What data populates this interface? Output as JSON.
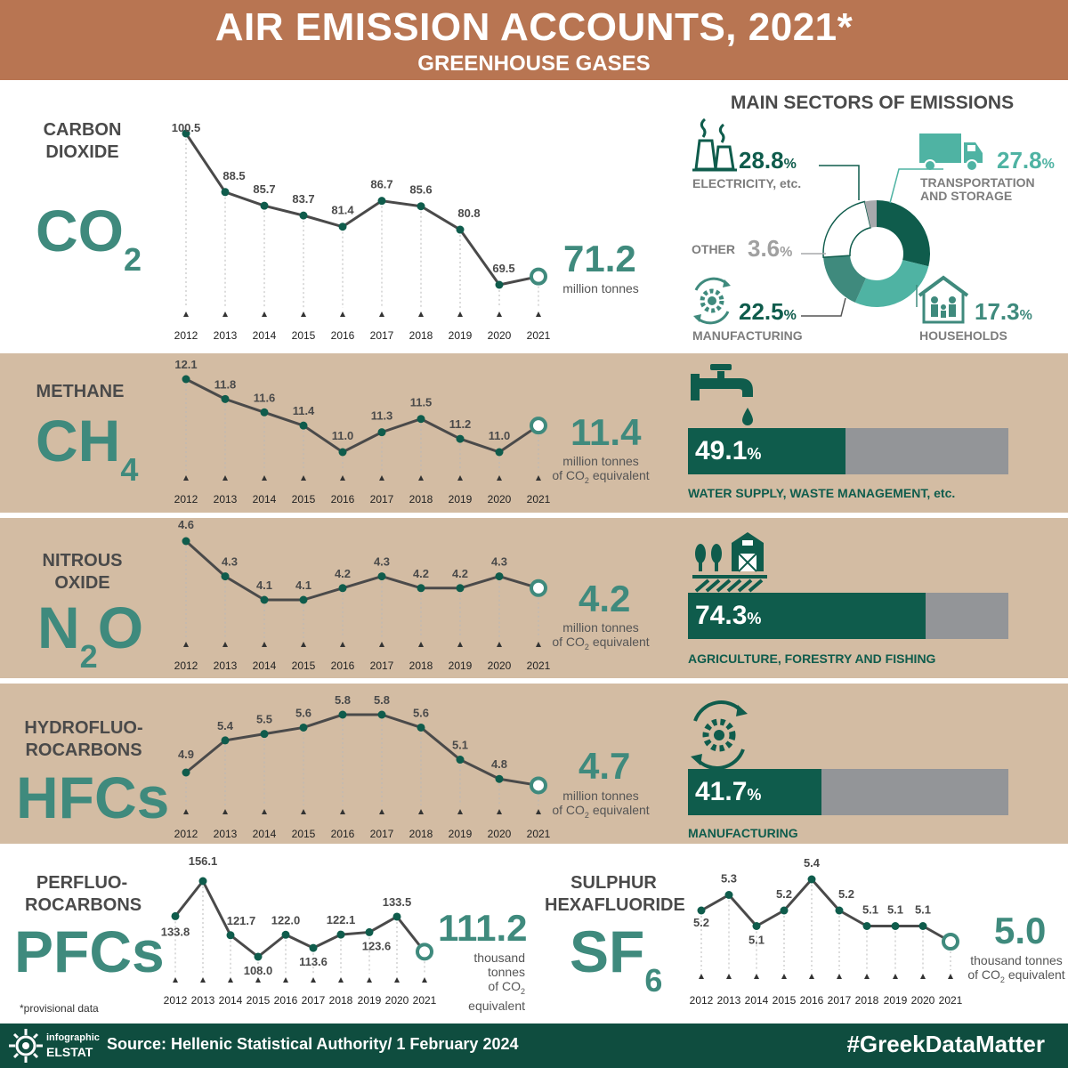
{
  "header": {
    "title": "AIR EMISSION ACCOUNTS, 2021*",
    "subtitle": "GREENHOUSE GASES"
  },
  "colors": {
    "header_bg": "#b87552",
    "band_bg": "#d3bca3",
    "teal": "#3f8a7d",
    "dark_green": "#0f5c4c",
    "light_teal": "#4fb3a3",
    "line": "#4a4a4a",
    "gray_bar": "#939598",
    "footer_bg": "#0f4d3f"
  },
  "gases": {
    "co2": {
      "name": "CARBON DIOXIDE",
      "formula": "CO",
      "formula_sub": "2",
      "latest": "71.2",
      "unit": "million tonnes"
    },
    "ch4": {
      "name": "METHANE",
      "formula": "CH",
      "formula_sub": "4",
      "latest": "11.4",
      "unit": "million tonnes",
      "unit2_pre": "of CO",
      "unit2_sub": "2",
      "unit2_post": " equivalent",
      "sector_pct": "49.1",
      "pct_sign": "%",
      "sector_name": "WATER SUPPLY, WASTE MANAGEMENT, etc.",
      "sector_share": 49.1,
      "icon": "water-tap-icon"
    },
    "n2o": {
      "name_line1": "NITROUS",
      "name_line2": "OXIDE",
      "formula_a": "N",
      "formula_sub": "2",
      "formula_b": "O",
      "latest": "4.2",
      "unit": "million tonnes",
      "unit2_pre": "of CO",
      "unit2_sub": "2",
      "unit2_post": " equivalent",
      "sector_pct": "74.3",
      "pct_sign": "%",
      "sector_name": "AGRICULTURE, FORESTRY AND FISHING",
      "sector_share": 74.3,
      "icon": "farm-barn-icon"
    },
    "hfc": {
      "name_line1": "HYDROFLUO-",
      "name_line2": "ROCARBONS",
      "formula": "HFCs",
      "latest": "4.7",
      "unit": "million tonnes",
      "unit2_pre": "of CO",
      "unit2_sub": "2",
      "unit2_post": " equivalent",
      "sector_pct": "41.7",
      "pct_sign": "%",
      "sector_name": "MANUFACTURING",
      "sector_share": 41.7,
      "icon": "gear-cycle-icon"
    },
    "pfc": {
      "name_line1": "PERFLUO-",
      "name_line2": "ROCARBONS",
      "formula": "PFCs",
      "latest": "111.2",
      "unit_l1": "thousand",
      "unit_l2": "tonnes",
      "unit_l3_pre": "of CO",
      "unit_l3_sub": "2",
      "unit_l4": "equivalent"
    },
    "sf6": {
      "name_line1": "SULPHUR",
      "name_line2": "HEXAFLUORIDE",
      "formula": "SF",
      "formula_sub": "6",
      "latest": "5.0",
      "unit": "thousand tonnes",
      "unit2_pre": "of CO",
      "unit2_sub": "2",
      "unit2_post": " equivalent"
    }
  },
  "main_sectors": {
    "title": "MAIN SECTORS OF EMISSIONS",
    "pct_sign": "%",
    "electricity": {
      "value": "28.8",
      "label": "ELECTRICITY, etc.",
      "icon": "power-plant-icon"
    },
    "transport": {
      "value": "27.8",
      "label_l1": "TRANSPORTATION",
      "label_l2": "AND STORAGE",
      "icon": "truck-icon"
    },
    "other": {
      "value": "3.6",
      "label": "OTHER"
    },
    "manufacturing": {
      "value": "22.5",
      "label": "MANUFACTURING",
      "icon": "gear-cycle-icon"
    },
    "households": {
      "value": "17.3",
      "label": "HOUSEHOLDS",
      "icon": "house-family-icon"
    }
  },
  "footnote": "*provisional data",
  "footer": {
    "source": "Source: Hellenic Statistical Authority/ 1 February 2024",
    "hashtag": "#GreekDataMatter",
    "logo_l1": "infographic",
    "logo_l2": "ELSTAT"
  },
  "chart_data": [
    {
      "type": "line",
      "id": "co2",
      "x": [
        "2012",
        "2013",
        "2014",
        "2015",
        "2016",
        "2017",
        "2018",
        "2019",
        "2020",
        "2021"
      ],
      "values": [
        100.5,
        88.5,
        85.7,
        83.7,
        81.4,
        86.7,
        85.6,
        80.8,
        69.5,
        71.2
      ],
      "labels": [
        "100.5",
        "88.5",
        "85.7",
        "83.7",
        "81.4",
        "86.7",
        "85.6",
        "80.8",
        "69.5"
      ]
    },
    {
      "type": "line",
      "id": "ch4",
      "x": [
        "2012",
        "2013",
        "2014",
        "2015",
        "2016",
        "2017",
        "2018",
        "2019",
        "2020",
        "2021"
      ],
      "values": [
        12.1,
        11.8,
        11.6,
        11.4,
        11.0,
        11.3,
        11.5,
        11.2,
        11.0,
        11.4
      ],
      "labels": [
        "12.1",
        "11.8",
        "11.6",
        "11.4",
        "11.0",
        "11.3",
        "11.5",
        "11.2",
        "11.0"
      ]
    },
    {
      "type": "line",
      "id": "n2o",
      "x": [
        "2012",
        "2013",
        "2014",
        "2015",
        "2016",
        "2017",
        "2018",
        "2019",
        "2020",
        "2021"
      ],
      "values": [
        4.6,
        4.3,
        4.1,
        4.1,
        4.2,
        4.3,
        4.2,
        4.2,
        4.3,
        4.2
      ],
      "labels": [
        "4.6",
        "4.3",
        "4.1",
        "4.1",
        "4.2",
        "4.3",
        "4.2",
        "4.2",
        "4.3"
      ]
    },
    {
      "type": "line",
      "id": "hfc",
      "x": [
        "2012",
        "2013",
        "2014",
        "2015",
        "2016",
        "2017",
        "2018",
        "2019",
        "2020",
        "2021"
      ],
      "values": [
        4.9,
        5.4,
        5.5,
        5.6,
        5.8,
        5.8,
        5.6,
        5.1,
        4.8,
        4.7
      ],
      "labels": [
        "4.9",
        "5.4",
        "5.5",
        "5.6",
        "5.8",
        "5.8",
        "5.6",
        "5.1",
        "4.8"
      ]
    },
    {
      "type": "line",
      "id": "pfc",
      "x": [
        "2012",
        "2013",
        "2014",
        "2015",
        "2016",
        "2017",
        "2018",
        "2019",
        "2020",
        "2021"
      ],
      "values": [
        133.8,
        156.1,
        121.7,
        108.0,
        122.0,
        113.6,
        122.1,
        123.6,
        133.5,
        111.2
      ],
      "labels": [
        "133.8",
        "156.1",
        "121.7",
        "108.0",
        "122.0",
        "113.6",
        "122.1",
        "123.6",
        "133.5"
      ]
    },
    {
      "type": "line",
      "id": "sf6",
      "x": [
        "2012",
        "2013",
        "2014",
        "2015",
        "2016",
        "2017",
        "2018",
        "2019",
        "2020",
        "2021"
      ],
      "values": [
        5.2,
        5.3,
        5.1,
        5.2,
        5.4,
        5.2,
        5.1,
        5.1,
        5.1,
        5.0
      ],
      "labels": [
        "5.2",
        "5.3",
        "5.1",
        "5.2",
        "5.4",
        "5.2",
        "5.1",
        "5.1",
        "5.1"
      ]
    },
    {
      "type": "pie",
      "id": "main-sectors",
      "categories": [
        "ELECTRICITY, etc.",
        "TRANSPORTATION AND STORAGE",
        "HOUSEHOLDS",
        "MANUFACTURING",
        "OTHER"
      ],
      "values": [
        28.8,
        27.8,
        17.3,
        22.5,
        3.6
      ]
    }
  ]
}
